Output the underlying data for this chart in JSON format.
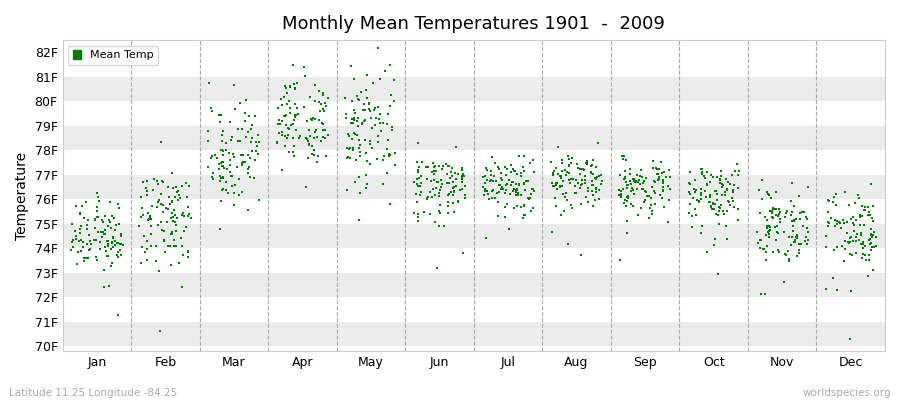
{
  "title": "Monthly Mean Temperatures 1901  -  2009",
  "ylabel": "Temperature",
  "xlabel_months": [
    "Jan",
    "Feb",
    "Mar",
    "Apr",
    "May",
    "Jun",
    "Jul",
    "Aug",
    "Sep",
    "Oct",
    "Nov",
    "Dec"
  ],
  "ytick_labels": [
    "70F",
    "71F",
    "72F",
    "73F",
    "74F",
    "75F",
    "76F",
    "77F",
    "78F",
    "79F",
    "80F",
    "81F",
    "82F"
  ],
  "ytick_values": [
    70,
    71,
    72,
    73,
    74,
    75,
    76,
    77,
    78,
    79,
    80,
    81,
    82
  ],
  "ylim": [
    69.8,
    82.5
  ],
  "dot_color": "#008000",
  "dot_size": 3,
  "legend_label": "Mean Temp",
  "footer_left": "Latitude 11.25 Longitude -84.25",
  "footer_right": "worldspecies.org",
  "background_color": "#ffffff",
  "plot_bg_color": "#ffffff",
  "n_years": 109,
  "month_means": [
    74.5,
    75.2,
    77.8,
    79.3,
    78.8,
    76.5,
    76.5,
    76.8,
    76.5,
    76.2,
    74.8,
    74.6
  ],
  "month_stds": [
    0.7,
    1.0,
    1.1,
    0.9,
    1.0,
    0.7,
    0.6,
    0.6,
    0.5,
    0.6,
    0.8,
    0.8
  ],
  "grid_band_color": "#ebebeb",
  "dashed_line_color": "#aaaaaa"
}
